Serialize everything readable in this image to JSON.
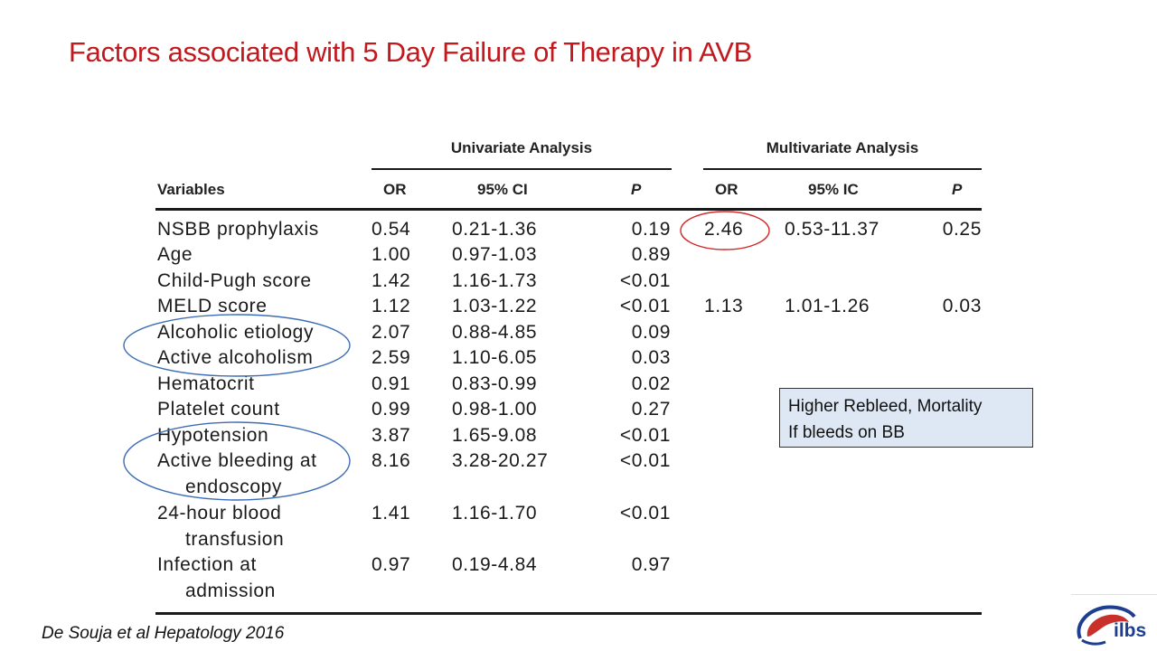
{
  "slide": {
    "title": "Factors associated with 5 Day Failure of Therapy in AVB",
    "citation": "De Souja et al Hepatology 2016",
    "logo_text": "ilbs"
  },
  "table": {
    "group_univariate": "Univariate Analysis",
    "group_multivariate": "Multivariate Analysis",
    "headers": {
      "variables": "Variables",
      "u_or": "OR",
      "u_ci": "95% CI",
      "u_p": "P",
      "m_or": "OR",
      "m_ic": "95% IC",
      "m_p": "P"
    },
    "rows": [
      {
        "variable": "NSBB prophylaxis",
        "or": "0.54",
        "ci": "0.21-1.36",
        "p": "0.19",
        "m_or": "2.46",
        "m_ic": "0.53-11.37",
        "m_p": "0.25"
      },
      {
        "variable": "Age",
        "or": "1.00",
        "ci": "0.97-1.03",
        "p": "0.89"
      },
      {
        "variable": "Child-Pugh score",
        "or": "1.42",
        "ci": "1.16-1.73",
        "p": "<0.01"
      },
      {
        "variable": "MELD score",
        "or": "1.12",
        "ci": "1.03-1.22",
        "p": "<0.01",
        "m_or": "1.13",
        "m_ic": "1.01-1.26",
        "m_p": "0.03"
      },
      {
        "variable": "Alcoholic etiology",
        "or": "2.07",
        "ci": "0.88-4.85",
        "p": "0.09"
      },
      {
        "variable": "Active alcoholism",
        "or": "2.59",
        "ci": "1.10-6.05",
        "p": "0.03"
      },
      {
        "variable": "Hematocrit",
        "or": "0.91",
        "ci": "0.83-0.99",
        "p": "0.02"
      },
      {
        "variable": "Platelet count",
        "or": "0.99",
        "ci": "0.98-1.00",
        "p": "0.27"
      },
      {
        "variable": "Hypotension",
        "or": "3.87",
        "ci": "1.65-9.08",
        "p": "<0.01"
      },
      {
        "variable": "Active bleeding at",
        "variable_cont": "endoscopy",
        "or": "8.16",
        "ci": "3.28-20.27",
        "p": "<0.01"
      },
      {
        "variable": "24-hour blood",
        "variable_cont": "transfusion",
        "or": "1.41",
        "ci": "1.16-1.70",
        "p": "<0.01"
      },
      {
        "variable": "Infection at",
        "variable_cont": "admission",
        "or": "0.97",
        "ci": "0.19-4.84",
        "p": "0.97"
      }
    ]
  },
  "callout": {
    "line1": "Higher Rebleed, Mortality",
    "line2": "If bleeds on BB"
  },
  "colors": {
    "title": "#c0191e",
    "red_circle": "#d42a2a",
    "blue_circle": "#3d6db5",
    "callout_bg": "#dee8f4",
    "logo": "#1e3f8f"
  }
}
